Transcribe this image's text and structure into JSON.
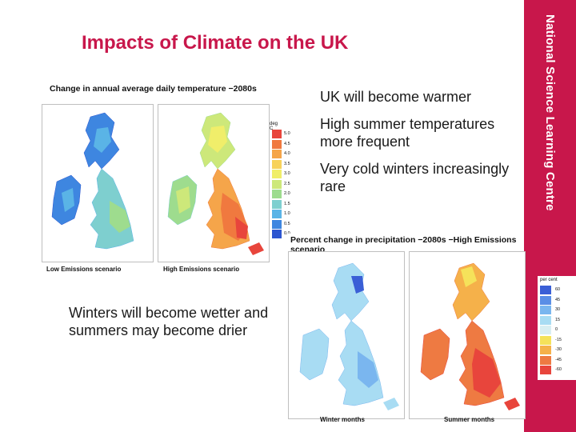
{
  "slide": {
    "title": "Impacts of Climate on the UK",
    "banner_text": "National Science Learning Centre",
    "accent_color": "#c8174b"
  },
  "bullets": [
    "UK will become warmer",
    "High summer temperatures more frequent",
    "Very cold winters increasingly rare"
  ],
  "bottom_text": "Winters will become wetter and summers may become drier",
  "temperature_figure": {
    "title": "Change in annual average daily temperature −2080s",
    "legend_title": "deg C",
    "legend_values": [
      "5.0",
      "4.5",
      "4.0",
      "3.5",
      "3.0",
      "2.5",
      "2.0",
      "1.5",
      "1.0",
      "0.5",
      "0.0"
    ],
    "legend_colors": [
      "#e8453c",
      "#f0793f",
      "#f5a54a",
      "#f7d25a",
      "#f0ee6a",
      "#cde87a",
      "#9edc8e",
      "#7ecfcf",
      "#5ab4e6",
      "#3e86e0",
      "#2d56d0"
    ],
    "panels": [
      {
        "label": "Low Emissions scenario"
      },
      {
        "label": "High Emissions scenario"
      }
    ]
  },
  "precipitation_figure": {
    "title": "Percent change in precipitation −2080s −High Emissions scenario",
    "legend_title": "per cent",
    "legend_values": [
      "60",
      "45",
      "30",
      "15",
      "0",
      "-15",
      "-30",
      "-45",
      "-60"
    ],
    "legend_colors": [
      "#3a5fd6",
      "#5a8ee6",
      "#7ab6ef",
      "#a8dcf3",
      "#d8eef2",
      "#f5e25a",
      "#f5b14a",
      "#ee7a42",
      "#e8453c"
    ],
    "panels": [
      {
        "label": "Winter months"
      },
      {
        "label": "Summer months"
      }
    ]
  }
}
